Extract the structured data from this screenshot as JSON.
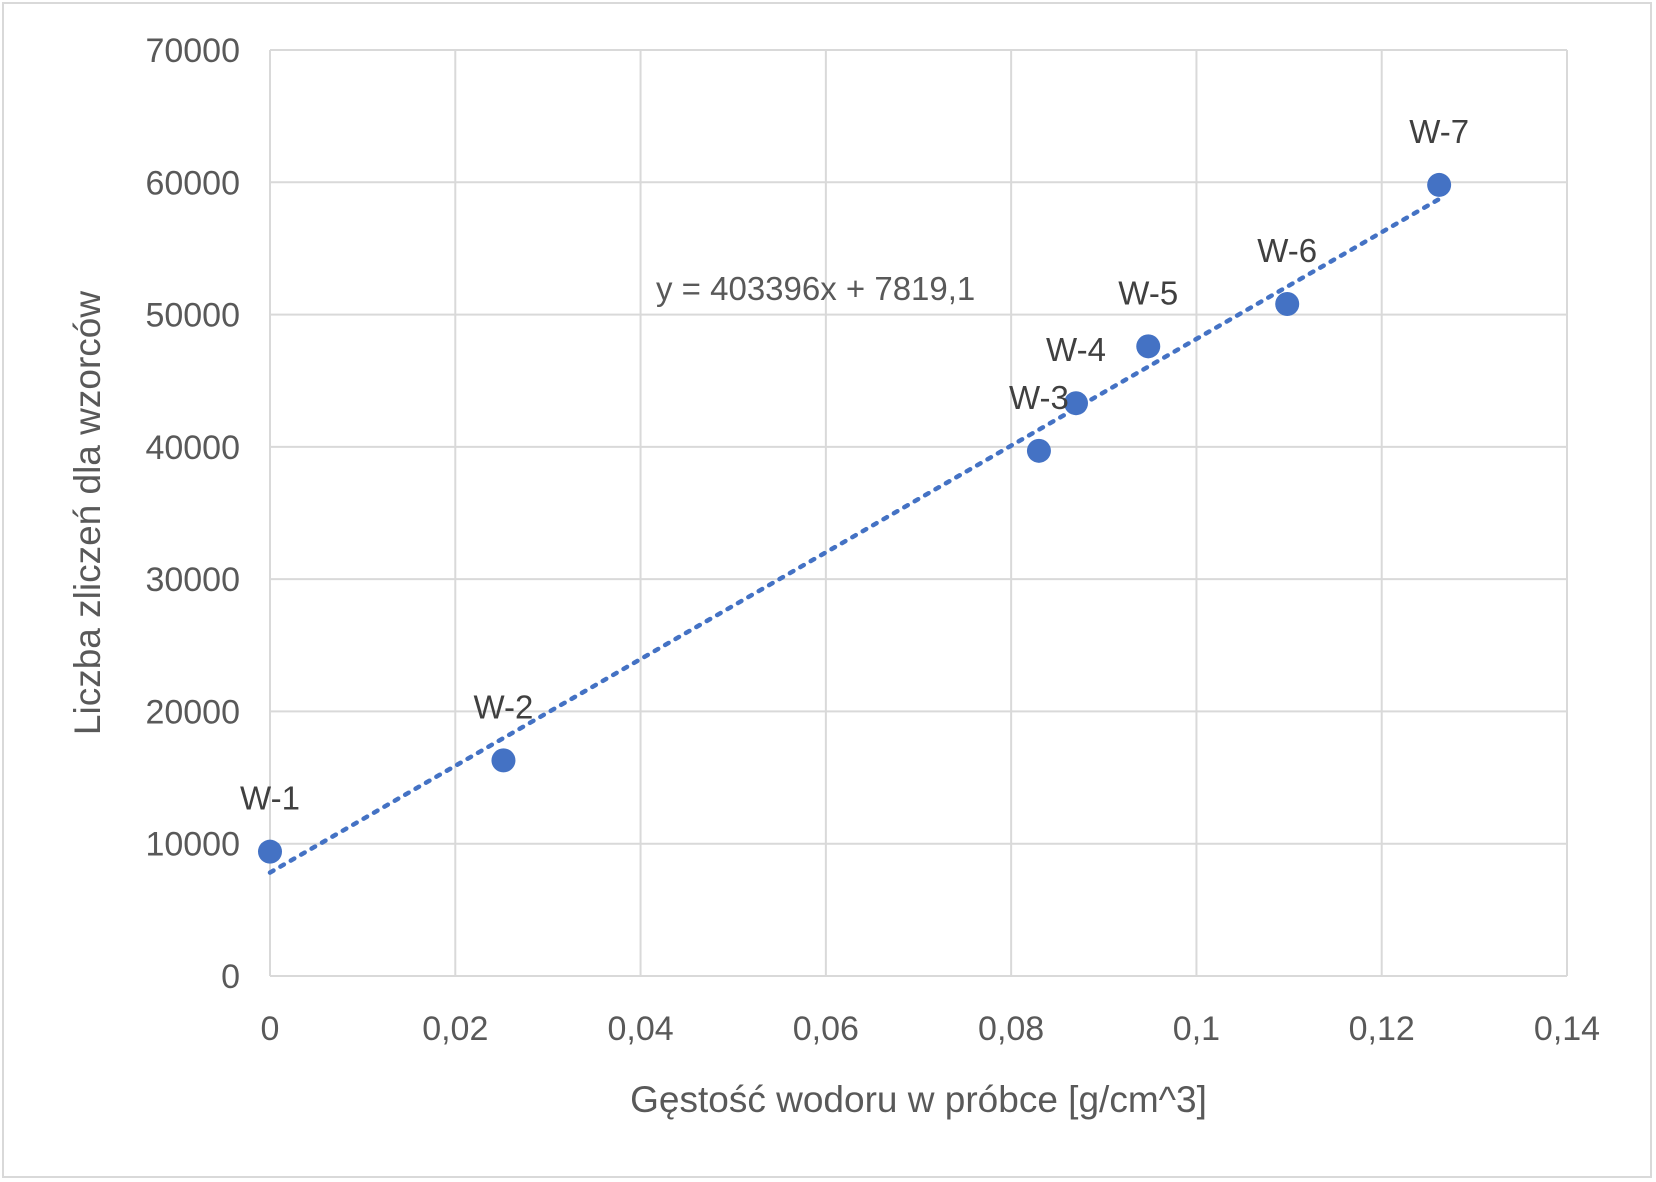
{
  "chart_data": {
    "type": "scatter",
    "title": "",
    "xlabel": "Gęstość wodoru w próbce [g/cm^3]",
    "ylabel": "Liczba zliczeń dla wzorców",
    "xlim": [
      0,
      0.14
    ],
    "ylim": [
      0,
      70000
    ],
    "x_ticks": [
      0,
      0.02,
      0.04,
      0.06,
      0.08,
      0.1,
      0.12,
      0.14
    ],
    "x_tick_labels": [
      "0",
      "0,02",
      "0,04",
      "0,06",
      "0,08",
      "0,1",
      "0,12",
      "0,14"
    ],
    "y_ticks": [
      0,
      10000,
      20000,
      30000,
      40000,
      50000,
      60000,
      70000
    ],
    "y_tick_labels": [
      "0",
      "10000",
      "20000",
      "30000",
      "40000",
      "50000",
      "60000",
      "70000"
    ],
    "grid": true,
    "legend": "none",
    "marker_color": "#4472C4",
    "points": [
      {
        "label": "W-1",
        "x": 0.0,
        "y": 9400
      },
      {
        "label": "W-2",
        "x": 0.0252,
        "y": 16300
      },
      {
        "label": "W-3",
        "x": 0.083,
        "y": 39700
      },
      {
        "label": "W-4",
        "x": 0.087,
        "y": 43300
      },
      {
        "label": "W-5",
        "x": 0.0948,
        "y": 47600
      },
      {
        "label": "W-6",
        "x": 0.1098,
        "y": 50800
      },
      {
        "label": "W-7",
        "x": 0.1262,
        "y": 59800
      }
    ],
    "trendline": {
      "type": "linear",
      "slope": 403396,
      "intercept": 7819.1,
      "x_range": [
        0,
        0.1262
      ],
      "equation_label": "y = 403396x + 7819,1",
      "style": "dotted"
    }
  }
}
